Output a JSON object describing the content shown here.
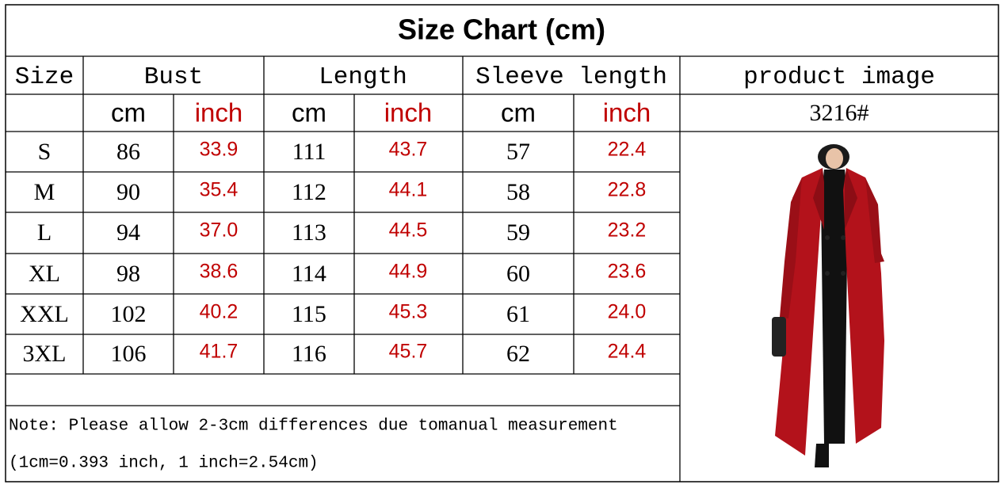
{
  "title": "Size Chart (cm)",
  "table": {
    "headers": [
      "Size",
      "Bust",
      "Length",
      "Sleeve length",
      "product image"
    ],
    "units": [
      "cm",
      "inch",
      "cm",
      "inch",
      "cm",
      "inch"
    ],
    "product_code": "3216#",
    "rows": [
      [
        "S",
        "86",
        "33.9",
        "111",
        "43.7",
        "57",
        "22.4"
      ],
      [
        "M",
        "90",
        "35.4",
        "112",
        "44.1",
        "58",
        "22.8"
      ],
      [
        "L",
        "94",
        "37.0",
        "113",
        "44.5",
        "59",
        "23.2"
      ],
      [
        "XL",
        "98",
        "38.6",
        "114",
        "44.9",
        "60",
        "23.6"
      ],
      [
        "XXL",
        "102",
        "40.2",
        "115",
        "45.3",
        "61",
        "24.0"
      ],
      [
        "3XL",
        "106",
        "41.7",
        "116",
        "45.7",
        "62",
        "24.4"
      ]
    ]
  },
  "note": [
    "Note: Please allow 2-3cm differences due tomanual measurement",
    "(1cm=0.393 inch, 1 inch=2.54cm)"
  ]
}
